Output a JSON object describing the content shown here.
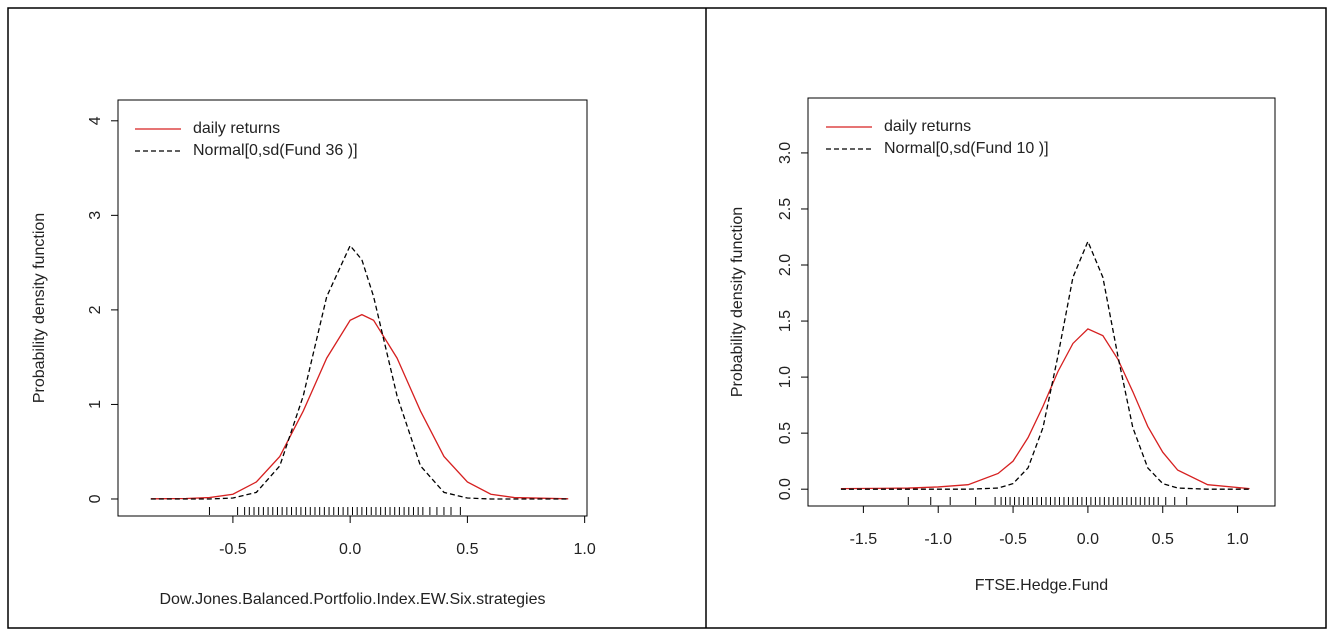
{
  "chart_data": [
    {
      "type": "line",
      "x_label": "Dow.Jones.Balanced.Portfolio.Index.EW.Six.strategies",
      "y_label": "Probability density function",
      "x": [
        -0.85,
        -0.7,
        -0.6,
        -0.5,
        -0.4,
        -0.3,
        -0.2,
        -0.1,
        0,
        0.05,
        0.1,
        0.2,
        0.3,
        0.4,
        0.5,
        0.6,
        0.7,
        0.93
      ],
      "series": [
        {
          "name": "daily returns",
          "color": "#d62020",
          "dash": false,
          "values": [
            0.002,
            0.005,
            0.015,
            0.05,
            0.18,
            0.45,
            0.93,
            1.49,
            1.89,
            1.95,
            1.89,
            1.49,
            0.93,
            0.45,
            0.18,
            0.05,
            0.015,
            0.002
          ]
        },
        {
          "name": "Normal[0,sd(Fund 36 )]",
          "color": "#000000",
          "dash": true,
          "values": [
            0,
            0,
            0,
            0.01,
            0.07,
            0.35,
            1.09,
            2.14,
            2.68,
            2.53,
            2.14,
            1.09,
            0.35,
            0.07,
            0.01,
            0,
            0,
            0
          ]
        }
      ],
      "rug": [
        -0.6,
        -0.48,
        -0.45,
        -0.43,
        -0.41,
        -0.39,
        -0.37,
        -0.35,
        -0.33,
        -0.31,
        -0.29,
        -0.27,
        -0.25,
        -0.23,
        -0.21,
        -0.19,
        -0.17,
        -0.15,
        -0.13,
        -0.11,
        -0.09,
        -0.07,
        -0.05,
        -0.03,
        -0.01,
        0.01,
        0.03,
        0.05,
        0.07,
        0.09,
        0.11,
        0.13,
        0.15,
        0.17,
        0.19,
        0.21,
        0.23,
        0.25,
        0.27,
        0.29,
        0.31,
        0.34,
        0.37,
        0.4,
        0.43,
        0.47
      ],
      "xlim": [
        -0.99,
        1.01
      ],
      "ylim": [
        -0.18,
        4.22
      ],
      "xticks": [
        -0.5,
        {
          "value": 0,
          "label": "0.0"
        },
        0.5,
        {
          "value": 1,
          "label": "1.0"
        }
      ],
      "yticks": [
        0,
        1,
        2,
        3,
        4
      ],
      "legend": "top-left"
    },
    {
      "type": "line",
      "x_label": "FTSE.Hedge.Fund",
      "y_label": "Probability density function",
      "x": [
        -1.65,
        -1.2,
        -1.0,
        -0.8,
        -0.6,
        -0.5,
        -0.4,
        -0.3,
        -0.2,
        -0.1,
        0,
        0.1,
        0.2,
        0.3,
        0.4,
        0.5,
        0.6,
        0.8,
        1.08
      ],
      "series": [
        {
          "name": "daily returns",
          "color": "#d62020",
          "dash": false,
          "values": [
            0.005,
            0.01,
            0.02,
            0.04,
            0.14,
            0.25,
            0.46,
            0.74,
            1.05,
            1.3,
            1.43,
            1.37,
            1.16,
            0.87,
            0.56,
            0.33,
            0.17,
            0.04,
            0.005
          ]
        },
        {
          "name": "Normal[0,sd(Fund 10 )]",
          "color": "#000000",
          "dash": true,
          "values": [
            0,
            0,
            0,
            0,
            0.01,
            0.05,
            0.19,
            0.55,
            1.19,
            1.89,
            2.21,
            1.89,
            1.19,
            0.55,
            0.19,
            0.05,
            0.01,
            0,
            0
          ]
        }
      ],
      "rug": [
        -1.2,
        -1.05,
        -0.92,
        -0.75,
        -0.62,
        -0.58,
        -0.55,
        -0.52,
        -0.49,
        -0.46,
        -0.43,
        -0.4,
        -0.37,
        -0.34,
        -0.31,
        -0.28,
        -0.25,
        -0.22,
        -0.19,
        -0.16,
        -0.13,
        -0.1,
        -0.07,
        -0.04,
        -0.01,
        0.02,
        0.05,
        0.08,
        0.11,
        0.14,
        0.17,
        0.2,
        0.23,
        0.26,
        0.29,
        0.32,
        0.35,
        0.38,
        0.41,
        0.44,
        0.47,
        0.52,
        0.58,
        0.66
      ],
      "xlim": [
        -1.87,
        1.25
      ],
      "ylim": [
        -0.15,
        3.49
      ],
      "xticks": [
        -1.5,
        {
          "value": -1,
          "label": "-1.0"
        },
        -0.5,
        {
          "value": 0,
          "label": "0.0"
        },
        0.5,
        {
          "value": 1,
          "label": "1.0"
        }
      ],
      "yticks": [
        {
          "value": 0,
          "label": "0.0"
        },
        0.5,
        {
          "value": 1,
          "label": "1.0"
        },
        1.5,
        {
          "value": 2,
          "label": "2.0"
        },
        2.5,
        {
          "value": 3,
          "label": "3.0"
        }
      ],
      "legend": "top-left"
    }
  ]
}
